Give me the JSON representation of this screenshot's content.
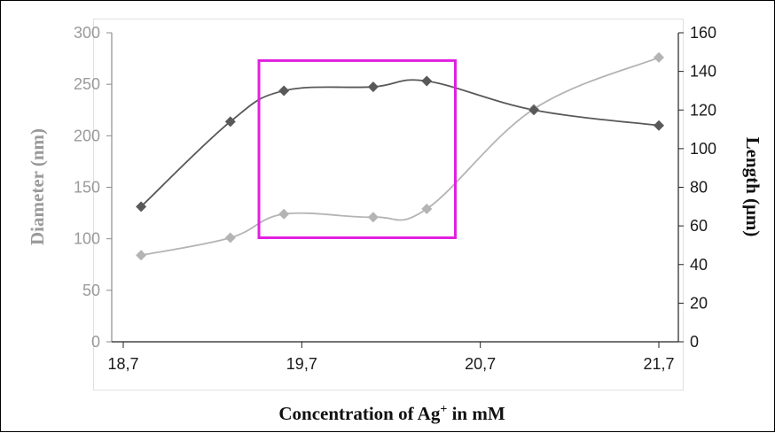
{
  "chart_data": {
    "type": "line",
    "xlabel": "Concentration of Ag",
    "xlabel_sup": "+",
    "xlabel_suffix": " in mM",
    "ylabel_left": "Diameter (nm)",
    "ylabel_right": "Length (μm)",
    "xlim": [
      18.7,
      21.7
    ],
    "ylim_left": [
      0,
      300
    ],
    "ylim_right": [
      0,
      160
    ],
    "x_ticks": [
      {
        "value": 18.7,
        "label": "18,7"
      },
      {
        "value": 19.7,
        "label": "19,7"
      },
      {
        "value": 20.7,
        "label": "20,7"
      },
      {
        "value": 21.7,
        "label": "21,7"
      }
    ],
    "y_left_ticks": [
      {
        "value": 0,
        "label": "0"
      },
      {
        "value": 50,
        "label": "50"
      },
      {
        "value": 100,
        "label": "100"
      },
      {
        "value": 150,
        "label": "150"
      },
      {
        "value": 200,
        "label": "200"
      },
      {
        "value": 250,
        "label": "250"
      },
      {
        "value": 300,
        "label": "300"
      }
    ],
    "y_right_ticks": [
      {
        "value": 0,
        "label": "0"
      },
      {
        "value": 20,
        "label": "20"
      },
      {
        "value": 40,
        "label": "40"
      },
      {
        "value": 60,
        "label": "60"
      },
      {
        "value": 80,
        "label": "80"
      },
      {
        "value": 100,
        "label": "100"
      },
      {
        "value": 120,
        "label": "120"
      },
      {
        "value": 140,
        "label": "140"
      },
      {
        "value": 160,
        "label": "160"
      }
    ],
    "series": [
      {
        "axis": "left",
        "color": "#b4b4b4",
        "marker": "diamond",
        "x": [
          18.8,
          19.3,
          19.6,
          20.1,
          20.4,
          21.0,
          21.7
        ],
        "y": [
          84,
          101,
          124,
          121,
          129,
          226,
          276
        ]
      },
      {
        "axis": "right",
        "color": "#595959",
        "marker": "diamond",
        "x": [
          18.8,
          19.3,
          19.6,
          20.1,
          20.4,
          21.0,
          21.7
        ],
        "y": [
          70,
          114,
          130,
          132,
          135,
          120,
          112
        ]
      }
    ],
    "highlight_box": {
      "color": "#e020e0",
      "x_range": [
        19.46,
        20.56
      ],
      "y_left_range": [
        101,
        273
      ]
    },
    "grid": false,
    "legend": "none"
  }
}
